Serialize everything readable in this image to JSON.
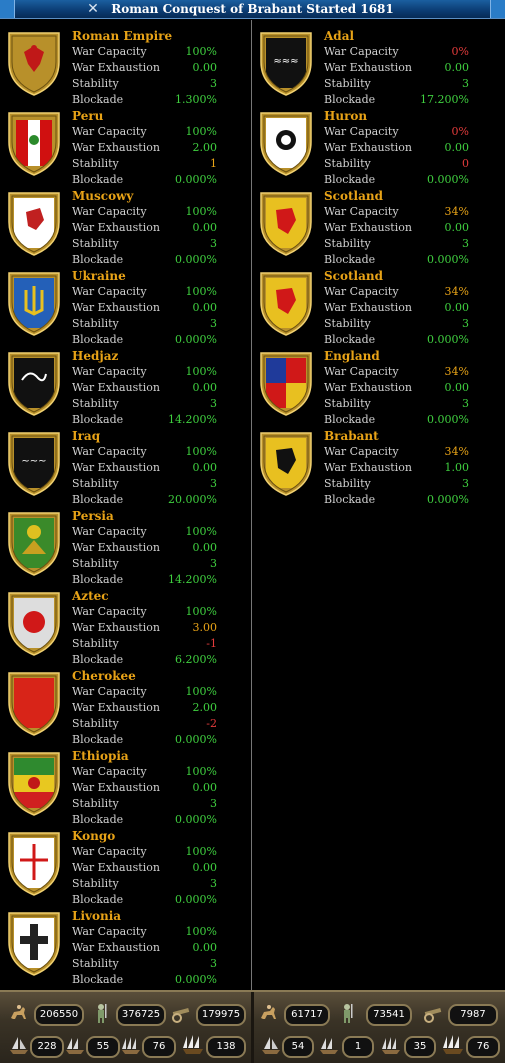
{
  "window": {
    "title": "Roman Conquest of Brabant Started 1681"
  },
  "labels": {
    "war_capacity": "War Capacity",
    "war_exhaustion": "War Exhaustion",
    "stability": "Stability",
    "blockade": "Blockade"
  },
  "left_side": [
    {
      "name": "Roman Empire",
      "war_capacity": "100%",
      "war_exhaustion": "0.00",
      "stability": "3",
      "blockade": "1.300%"
    },
    {
      "name": "Peru",
      "war_capacity": "100%",
      "war_exhaustion": "2.00",
      "stability": "1",
      "blockade": "0.000%"
    },
    {
      "name": "Muscowy",
      "war_capacity": "100%",
      "war_exhaustion": "0.00",
      "stability": "3",
      "blockade": "0.000%"
    },
    {
      "name": "Ukraine",
      "war_capacity": "100%",
      "war_exhaustion": "0.00",
      "stability": "3",
      "blockade": "0.000%"
    },
    {
      "name": "Hedjaz",
      "war_capacity": "100%",
      "war_exhaustion": "0.00",
      "stability": "3",
      "blockade": "14.200%"
    },
    {
      "name": "Iraq",
      "war_capacity": "100%",
      "war_exhaustion": "0.00",
      "stability": "3",
      "blockade": "20.000%"
    },
    {
      "name": "Persia",
      "war_capacity": "100%",
      "war_exhaustion": "0.00",
      "stability": "3",
      "blockade": "14.200%"
    },
    {
      "name": "Aztec",
      "war_capacity": "100%",
      "war_exhaustion": "3.00",
      "stability": "-1",
      "blockade": "6.200%"
    },
    {
      "name": "Cherokee",
      "war_capacity": "100%",
      "war_exhaustion": "2.00",
      "stability": "-2",
      "blockade": "0.000%"
    },
    {
      "name": "Ethiopia",
      "war_capacity": "100%",
      "war_exhaustion": "0.00",
      "stability": "3",
      "blockade": "0.000%"
    },
    {
      "name": "Kongo",
      "war_capacity": "100%",
      "war_exhaustion": "0.00",
      "stability": "3",
      "blockade": "0.000%"
    },
    {
      "name": "Livonia",
      "war_capacity": "100%",
      "war_exhaustion": "0.00",
      "stability": "3",
      "blockade": "0.000%"
    }
  ],
  "right_side": [
    {
      "name": "Adal",
      "war_capacity": "0%",
      "war_exhaustion": "0.00",
      "stability": "3",
      "blockade": "17.200%"
    },
    {
      "name": "Huron",
      "war_capacity": "0%",
      "war_exhaustion": "0.00",
      "stability": "0",
      "blockade": "0.000%"
    },
    {
      "name": "Scotland",
      "war_capacity": "34%",
      "war_exhaustion": "0.00",
      "stability": "3",
      "blockade": "0.000%"
    },
    {
      "name": "Scotland",
      "war_capacity": "34%",
      "war_exhaustion": "0.00",
      "stability": "3",
      "blockade": "0.000%"
    },
    {
      "name": "England",
      "war_capacity": "34%",
      "war_exhaustion": "0.00",
      "stability": "3",
      "blockade": "0.000%"
    },
    {
      "name": "Brabant",
      "war_capacity": "34%",
      "war_exhaustion": "1.00",
      "stability": "3",
      "blockade": "0.000%"
    }
  ],
  "footer": {
    "left": {
      "cavalry": "206550",
      "infantry": "376725",
      "artillery": "179975",
      "light_ships": "228",
      "transports": "55",
      "galleys": "76",
      "warships": "138"
    },
    "right": {
      "cavalry": "61717",
      "infantry": "73541",
      "artillery": "7987",
      "light_ships": "54",
      "transports": "1",
      "galleys": "35",
      "warships": "76"
    }
  },
  "colors": {
    "positive": "#3fcf3f",
    "warning": "#e8a317",
    "negative": "#e23b3b",
    "title_bar": "#0b3b72"
  },
  "icons": [
    "close-icon",
    "cavalry-icon",
    "infantry-icon",
    "artillery-icon",
    "light-ship-icon",
    "transport-icon",
    "galley-icon",
    "warship-icon"
  ]
}
